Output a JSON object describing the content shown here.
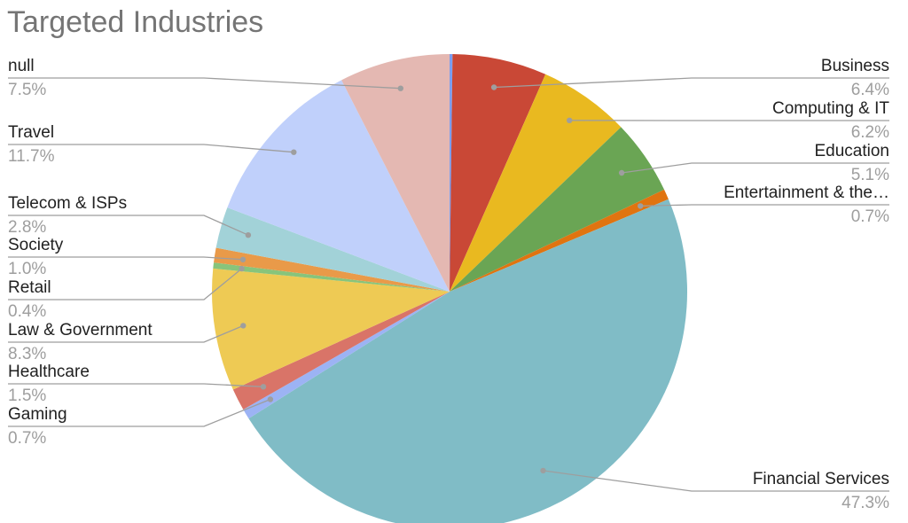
{
  "chart_data": {
    "type": "pie",
    "title": "Targeted Industries",
    "slices": [
      {
        "label": "",
        "value": 0.2,
        "color": "#7b9ef0",
        "side": "none"
      },
      {
        "label": "Business",
        "value": 6.4,
        "pct": "6.4%",
        "color": "#c94836",
        "side": "right"
      },
      {
        "label": "Computing & IT",
        "value": 6.2,
        "pct": "6.2%",
        "color": "#e9b920",
        "side": "right"
      },
      {
        "label": "Education",
        "value": 5.1,
        "pct": "5.1%",
        "color": "#6aa554",
        "side": "right"
      },
      {
        "label": "Entertainment & the…",
        "value": 0.7,
        "pct": "0.7%",
        "color": "#e07410",
        "side": "right"
      },
      {
        "label": "Financial Services",
        "value": 47.3,
        "pct": "47.3%",
        "color": "#80bcc6",
        "side": "right"
      },
      {
        "label": "Gaming",
        "value": 0.7,
        "pct": "0.7%",
        "color": "#9cb3f4",
        "side": "left"
      },
      {
        "label": "Healthcare",
        "value": 1.5,
        "pct": "1.5%",
        "color": "#d97468",
        "side": "left"
      },
      {
        "label": "Law & Government",
        "value": 8.3,
        "pct": "8.3%",
        "color": "#eeca54",
        "side": "left"
      },
      {
        "label": "Retail",
        "value": 0.4,
        "pct": "0.4%",
        "color": "#88c47b",
        "side": "left"
      },
      {
        "label": "Society",
        "value": 1.0,
        "pct": "1.0%",
        "color": "#e99a49",
        "side": "left"
      },
      {
        "label": "Telecom & ISPs",
        "value": 2.8,
        "pct": "2.8%",
        "color": "#a2d2d8",
        "side": "left"
      },
      {
        "label": "Travel",
        "value": 11.7,
        "pct": "11.7%",
        "color": "#c0d0fb",
        "side": "left"
      },
      {
        "label": "null",
        "value": 7.5,
        "pct": "7.5%",
        "color": "#e4b8b2",
        "side": "left"
      }
    ],
    "legend": "none",
    "labels": "outside-with-leader-lines"
  }
}
